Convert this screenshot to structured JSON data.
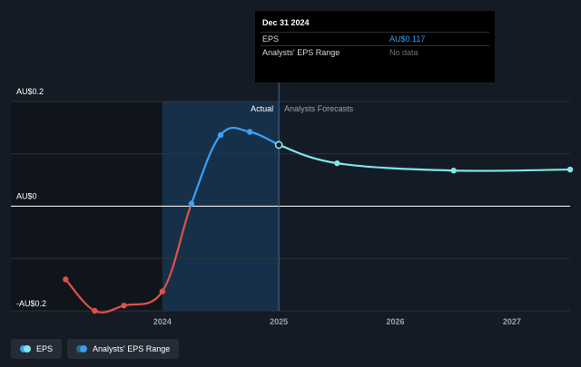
{
  "chart_data": {
    "type": "line",
    "title": "",
    "xlabel": "",
    "ylabel": "",
    "x_ticks": [
      {
        "label": "2024",
        "year": 2024
      },
      {
        "label": "2025",
        "year": 2025
      },
      {
        "label": "2026",
        "year": 2026
      },
      {
        "label": "2027",
        "year": 2027
      }
    ],
    "y_ticks": [
      {
        "label": "AU$0.2",
        "value": 0.2
      },
      {
        "label": "AU$0",
        "value": 0
      },
      {
        "label": "-AU$0.2",
        "value": -0.2
      }
    ],
    "xlim": [
      2022.7,
      2027.5
    ],
    "ylim": [
      -0.2,
      0.2
    ],
    "regions": {
      "actual_label": "Actual",
      "forecast_label": "Analysts Forecasts",
      "divider_x": 2025.0,
      "highlight_range": [
        2024.0,
        2025.0
      ]
    },
    "series": [
      {
        "name": "EPS",
        "segment": "actual",
        "points": [
          {
            "x": 2023.17,
            "y": -0.14
          },
          {
            "x": 2023.42,
            "y": -0.2
          },
          {
            "x": 2023.67,
            "y": -0.19
          },
          {
            "x": 2024.0,
            "y": -0.163
          },
          {
            "x": 2024.25,
            "y": 0.005
          },
          {
            "x": 2024.5,
            "y": 0.136
          },
          {
            "x": 2024.75,
            "y": 0.142
          },
          {
            "x": 2025.0,
            "y": 0.117
          }
        ]
      },
      {
        "name": "EPS Forecast",
        "segment": "forecast",
        "points": [
          {
            "x": 2025.0,
            "y": 0.117
          },
          {
            "x": 2025.5,
            "y": 0.082
          },
          {
            "x": 2026.5,
            "y": 0.068
          },
          {
            "x": 2027.5,
            "y": 0.07
          }
        ]
      }
    ],
    "colors": {
      "negative": "#e0504a",
      "positive": "#3aa0f5",
      "forecast": "#7ee8ea",
      "grid": "#2b323c",
      "zero_line": "#ffffff",
      "highlight": "#17304a"
    }
  },
  "tooltip": {
    "date": "Dec 31 2024",
    "rows": [
      {
        "name": "EPS",
        "value": "AU$0.117"
      },
      {
        "name": "Analysts' EPS Range",
        "value": "No data"
      }
    ]
  },
  "legend": {
    "items": [
      {
        "label": "EPS",
        "color_a": "#3aa0f5",
        "color_b": "#7ee8ea"
      },
      {
        "label": "Analysts' EPS Range",
        "color_a": "#3aa0f5",
        "color_b": "#2a6e80"
      }
    ]
  }
}
